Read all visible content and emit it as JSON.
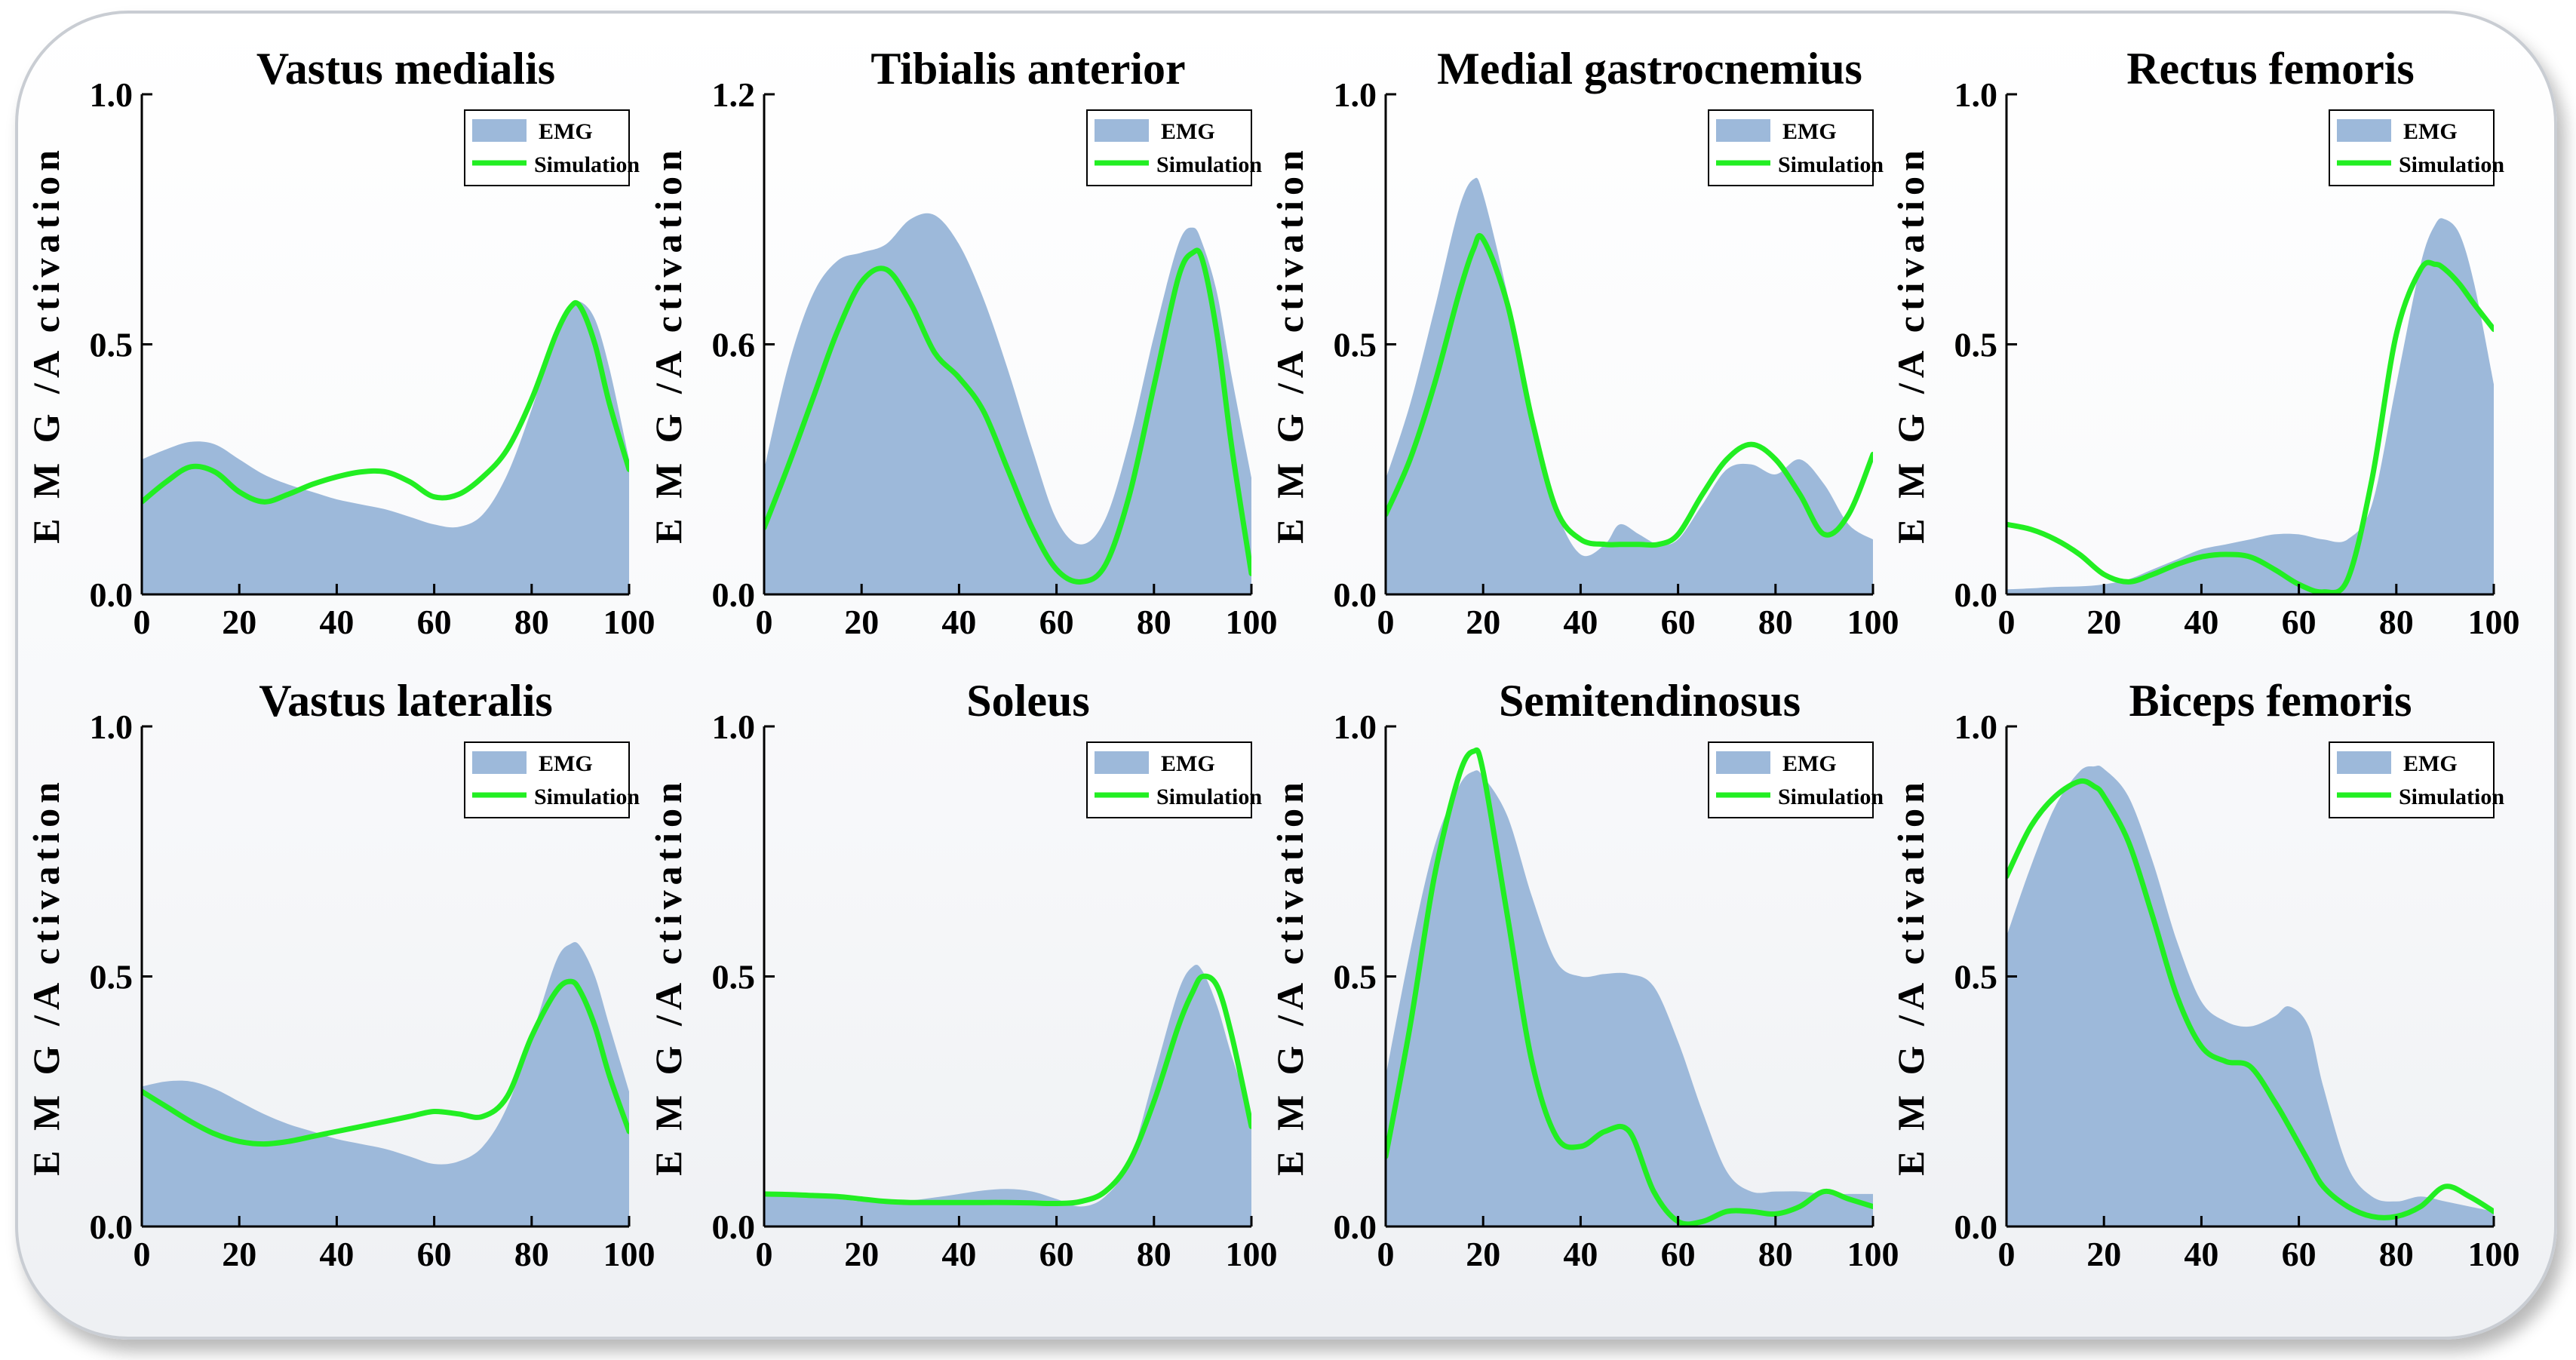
{
  "colors": {
    "emg_fill": "#9db9da",
    "simulation_line": "#22ee22",
    "axis": "#000000",
    "frame_border": "#c9cdd3"
  },
  "chart_data": [
    {
      "type": "area",
      "title": "Vastus medialis",
      "xlabel": "",
      "ylabel": "E M G /A ctivation",
      "xlim": [
        0,
        100
      ],
      "ylim": [
        0,
        1.0
      ],
      "xticks": [
        "0",
        "20",
        "40",
        "60",
        "80",
        "100"
      ],
      "yticks": [
        "0.0",
        "0.5",
        "1.0"
      ],
      "legend": [
        "EMG",
        "Simulation"
      ],
      "legend_position": "top-right",
      "x": [
        0,
        5,
        10,
        15,
        20,
        25,
        30,
        35,
        40,
        45,
        50,
        55,
        60,
        65,
        70,
        75,
        80,
        85,
        88,
        90,
        93,
        96,
        100
      ],
      "series": [
        {
          "name": "EMG",
          "values": [
            0.27,
            0.29,
            0.305,
            0.3,
            0.27,
            0.24,
            0.22,
            0.205,
            0.19,
            0.18,
            0.17,
            0.155,
            0.14,
            0.135,
            0.16,
            0.24,
            0.37,
            0.52,
            0.57,
            0.585,
            0.55,
            0.45,
            0.27
          ]
        },
        {
          "name": "Simulation",
          "values": [
            0.185,
            0.225,
            0.255,
            0.245,
            0.205,
            0.185,
            0.2,
            0.22,
            0.235,
            0.245,
            0.245,
            0.225,
            0.195,
            0.2,
            0.235,
            0.29,
            0.39,
            0.52,
            0.575,
            0.575,
            0.5,
            0.38,
            0.25
          ]
        }
      ]
    },
    {
      "type": "area",
      "title": "Tibialis anterior",
      "xlabel": "",
      "ylabel": "E M G /A ctivation",
      "xlim": [
        0,
        100
      ],
      "ylim": [
        0,
        1.2
      ],
      "xticks": [
        "0",
        "20",
        "40",
        "60",
        "80",
        "100"
      ],
      "yticks": [
        "0.0",
        "0.6",
        "1.2"
      ],
      "legend": [
        "EMG",
        "Simulation"
      ],
      "legend_position": "top-right",
      "x": [
        0,
        5,
        10,
        15,
        20,
        25,
        30,
        35,
        40,
        45,
        50,
        55,
        60,
        65,
        70,
        75,
        80,
        85,
        88,
        90,
        93,
        96,
        100
      ],
      "series": [
        {
          "name": "EMG",
          "values": [
            0.3,
            0.55,
            0.72,
            0.8,
            0.82,
            0.84,
            0.9,
            0.91,
            0.84,
            0.71,
            0.54,
            0.35,
            0.18,
            0.12,
            0.18,
            0.37,
            0.62,
            0.84,
            0.88,
            0.84,
            0.72,
            0.52,
            0.28
          ]
        },
        {
          "name": "Simulation",
          "values": [
            0.16,
            0.31,
            0.47,
            0.63,
            0.75,
            0.78,
            0.7,
            0.58,
            0.52,
            0.44,
            0.3,
            0.16,
            0.06,
            0.03,
            0.07,
            0.24,
            0.5,
            0.76,
            0.82,
            0.8,
            0.62,
            0.35,
            0.05
          ]
        }
      ]
    },
    {
      "type": "area",
      "title": "Medial gastrocnemius",
      "xlabel": "",
      "ylabel": "E M G /A ctivation",
      "xlim": [
        0,
        100
      ],
      "ylim": [
        0,
        1.0
      ],
      "xticks": [
        "0",
        "20",
        "40",
        "60",
        "80",
        "100"
      ],
      "yticks": [
        "0.0",
        "0.5",
        "1.0"
      ],
      "legend": [
        "EMG",
        "Simulation"
      ],
      "legend_position": "top-right",
      "x": [
        0,
        5,
        10,
        15,
        18,
        20,
        25,
        30,
        35,
        40,
        45,
        48,
        52,
        56,
        60,
        65,
        70,
        75,
        80,
        85,
        90,
        95,
        100
      ],
      "series": [
        {
          "name": "EMG",
          "values": [
            0.23,
            0.38,
            0.57,
            0.77,
            0.83,
            0.8,
            0.6,
            0.36,
            0.17,
            0.08,
            0.1,
            0.14,
            0.12,
            0.1,
            0.11,
            0.18,
            0.25,
            0.26,
            0.24,
            0.27,
            0.22,
            0.14,
            0.11
          ]
        },
        {
          "name": "Simulation",
          "values": [
            0.16,
            0.27,
            0.42,
            0.6,
            0.69,
            0.71,
            0.58,
            0.35,
            0.17,
            0.11,
            0.1,
            0.1,
            0.1,
            0.1,
            0.12,
            0.2,
            0.27,
            0.3,
            0.27,
            0.2,
            0.12,
            0.16,
            0.28
          ]
        }
      ]
    },
    {
      "type": "area",
      "title": "Rectus femoris",
      "xlabel": "",
      "ylabel": "E M G /A ctivation",
      "xlim": [
        0,
        100
      ],
      "ylim": [
        0,
        1.0
      ],
      "xticks": [
        "0",
        "20",
        "40",
        "60",
        "80",
        "100"
      ],
      "yticks": [
        "0.0",
        "0.5",
        "1.0"
      ],
      "legend": [
        "EMG",
        "Simulation"
      ],
      "legend_position": "top-right",
      "x": [
        0,
        5,
        10,
        15,
        20,
        25,
        30,
        35,
        40,
        45,
        50,
        55,
        60,
        65,
        70,
        75,
        80,
        85,
        88,
        90,
        93,
        96,
        100
      ],
      "series": [
        {
          "name": "EMG",
          "values": [
            0.01,
            0.012,
            0.015,
            0.016,
            0.02,
            0.03,
            0.05,
            0.07,
            0.09,
            0.1,
            0.11,
            0.12,
            0.12,
            0.11,
            0.11,
            0.18,
            0.42,
            0.66,
            0.74,
            0.75,
            0.72,
            0.62,
            0.42
          ]
        },
        {
          "name": "Simulation",
          "values": [
            0.14,
            0.13,
            0.11,
            0.08,
            0.04,
            0.025,
            0.04,
            0.06,
            0.075,
            0.08,
            0.075,
            0.05,
            0.02,
            0.005,
            0.03,
            0.23,
            0.52,
            0.65,
            0.66,
            0.65,
            0.62,
            0.58,
            0.53
          ]
        }
      ]
    },
    {
      "type": "area",
      "title": "Vastus lateralis",
      "xlabel": "",
      "ylabel": "E M G /A ctivation",
      "xlim": [
        0,
        100
      ],
      "ylim": [
        0,
        1.0
      ],
      "xticks": [
        "0",
        "20",
        "40",
        "60",
        "80",
        "100"
      ],
      "yticks": [
        "0.0",
        "0.5",
        "1.0"
      ],
      "legend": [
        "EMG",
        "Simulation"
      ],
      "legend_position": "top-right",
      "x": [
        0,
        5,
        10,
        15,
        20,
        25,
        30,
        35,
        40,
        45,
        50,
        55,
        60,
        65,
        70,
        75,
        80,
        85,
        88,
        90,
        93,
        96,
        100
      ],
      "series": [
        {
          "name": "EMG",
          "values": [
            0.28,
            0.29,
            0.29,
            0.275,
            0.25,
            0.225,
            0.205,
            0.19,
            0.175,
            0.165,
            0.155,
            0.14,
            0.125,
            0.13,
            0.16,
            0.24,
            0.38,
            0.53,
            0.565,
            0.56,
            0.5,
            0.4,
            0.27
          ]
        },
        {
          "name": "Simulation",
          "values": [
            0.27,
            0.24,
            0.21,
            0.185,
            0.17,
            0.165,
            0.17,
            0.18,
            0.19,
            0.2,
            0.21,
            0.22,
            0.23,
            0.225,
            0.22,
            0.26,
            0.38,
            0.47,
            0.49,
            0.47,
            0.4,
            0.3,
            0.19
          ]
        }
      ]
    },
    {
      "type": "area",
      "title": "Soleus",
      "xlabel": "",
      "ylabel": "E M G /A ctivation",
      "xlim": [
        0,
        100
      ],
      "ylim": [
        0,
        1.0
      ],
      "xticks": [
        "0",
        "20",
        "40",
        "60",
        "80",
        "100"
      ],
      "yticks": [
        "0.0",
        "0.5",
        "1.0"
      ],
      "legend": [
        "EMG",
        "Simulation"
      ],
      "legend_position": "top-right",
      "x": [
        0,
        5,
        10,
        15,
        20,
        25,
        30,
        35,
        40,
        45,
        50,
        55,
        60,
        65,
        70,
        75,
        80,
        85,
        88,
        90,
        93,
        96,
        100
      ],
      "series": [
        {
          "name": "EMG",
          "values": [
            0.06,
            0.06,
            0.058,
            0.055,
            0.05,
            0.05,
            0.052,
            0.058,
            0.065,
            0.072,
            0.075,
            0.07,
            0.055,
            0.04,
            0.06,
            0.13,
            0.3,
            0.47,
            0.52,
            0.51,
            0.44,
            0.34,
            0.22
          ]
        },
        {
          "name": "Simulation",
          "values": [
            0.065,
            0.064,
            0.062,
            0.06,
            0.055,
            0.05,
            0.048,
            0.048,
            0.048,
            0.048,
            0.048,
            0.047,
            0.046,
            0.05,
            0.07,
            0.13,
            0.25,
            0.4,
            0.47,
            0.5,
            0.48,
            0.38,
            0.2
          ]
        }
      ]
    },
    {
      "type": "area",
      "title": "Semitendinosus",
      "xlabel": "",
      "ylabel": "E M G /A ctivation",
      "xlim": [
        0,
        100
      ],
      "ylim": [
        0,
        1.0
      ],
      "xticks": [
        "0",
        "20",
        "40",
        "60",
        "80",
        "100"
      ],
      "yticks": [
        "0.0",
        "0.5",
        "1.0"
      ],
      "legend": [
        "EMG",
        "Simulation"
      ],
      "legend_position": "top-right",
      "x": [
        0,
        5,
        10,
        15,
        18,
        20,
        25,
        30,
        35,
        40,
        45,
        50,
        55,
        60,
        65,
        70,
        75,
        80,
        85,
        90,
        95,
        100
      ],
      "series": [
        {
          "name": "EMG",
          "values": [
            0.3,
            0.55,
            0.76,
            0.88,
            0.91,
            0.9,
            0.82,
            0.66,
            0.53,
            0.5,
            0.505,
            0.505,
            0.48,
            0.37,
            0.23,
            0.11,
            0.07,
            0.07,
            0.07,
            0.065,
            0.065,
            0.065
          ]
        },
        {
          "name": "Simulation",
          "values": [
            0.14,
            0.4,
            0.7,
            0.9,
            0.95,
            0.91,
            0.62,
            0.33,
            0.18,
            0.16,
            0.19,
            0.19,
            0.07,
            0.01,
            0.01,
            0.03,
            0.03,
            0.025,
            0.04,
            0.07,
            0.055,
            0.04
          ]
        }
      ]
    },
    {
      "type": "area",
      "title": "Biceps femoris",
      "xlabel": "",
      "ylabel": "E M G /A ctivation",
      "xlim": [
        0,
        100
      ],
      "ylim": [
        0,
        1.0
      ],
      "xticks": [
        "0",
        "20",
        "40",
        "60",
        "80",
        "100"
      ],
      "yticks": [
        "0.0",
        "0.5",
        "1.0"
      ],
      "legend": [
        "EMG",
        "Simulation"
      ],
      "legend_position": "top-right",
      "x": [
        0,
        5,
        10,
        15,
        18,
        20,
        25,
        30,
        35,
        40,
        45,
        50,
        55,
        58,
        62,
        65,
        70,
        75,
        80,
        85,
        90,
        95,
        100
      ],
      "series": [
        {
          "name": "EMG",
          "values": [
            0.58,
            0.72,
            0.84,
            0.91,
            0.92,
            0.915,
            0.86,
            0.73,
            0.57,
            0.45,
            0.41,
            0.4,
            0.42,
            0.44,
            0.4,
            0.28,
            0.12,
            0.06,
            0.05,
            0.06,
            0.05,
            0.04,
            0.03
          ]
        },
        {
          "name": "Simulation",
          "values": [
            0.7,
            0.8,
            0.86,
            0.89,
            0.88,
            0.86,
            0.77,
            0.62,
            0.46,
            0.36,
            0.33,
            0.32,
            0.25,
            0.2,
            0.13,
            0.08,
            0.04,
            0.02,
            0.02,
            0.04,
            0.08,
            0.06,
            0.03
          ]
        }
      ]
    }
  ]
}
